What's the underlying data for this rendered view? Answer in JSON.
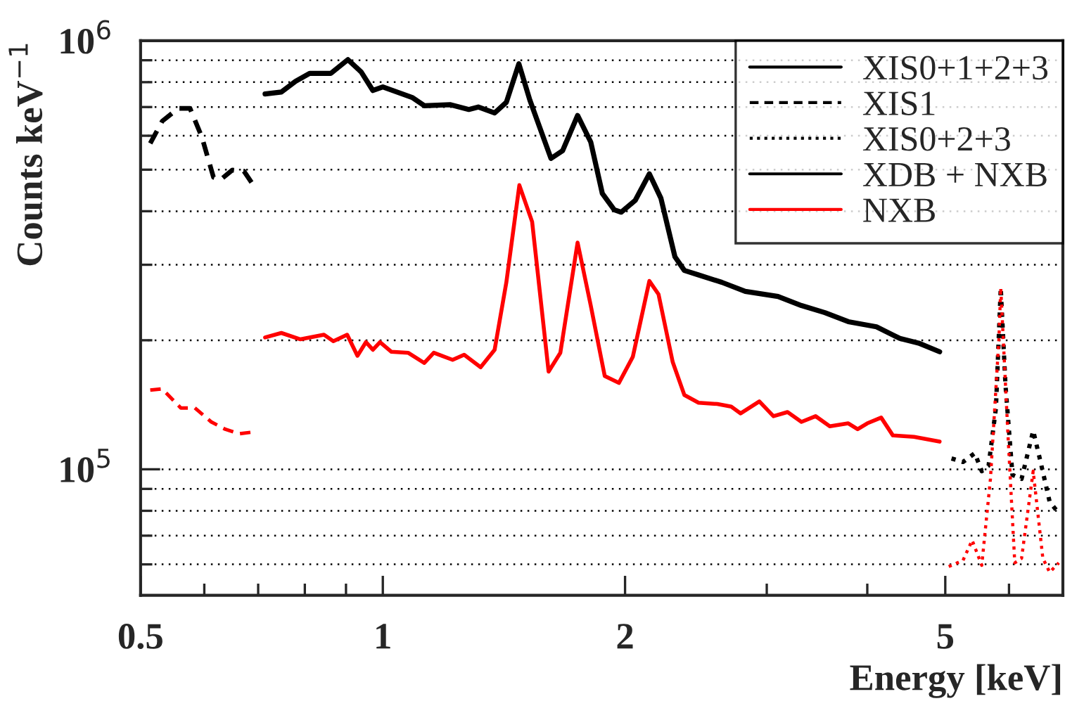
{
  "chart_data": {
    "type": "line",
    "xlabel": "Energy [keV]",
    "ylabel": "Counts keV$^{−1}$",
    "log": "xy",
    "grid": "y",
    "legend": "top right",
    "xlim": [
      0.5,
      7
    ],
    "ylim": [
      50800,
      1000000
    ],
    "xticks": [
      0.5,
      {
        "value": 0.6,
        "label": null
      },
      {
        "value": 0.7,
        "label": null
      },
      {
        "value": 0.8,
        "label": null
      },
      {
        "value": 0.9,
        "label": null
      },
      1,
      2,
      {
        "value": 3,
        "label": null
      },
      {
        "value": 4,
        "label": null
      },
      5,
      {
        "value": 6,
        "label": null
      },
      {
        "value": 7,
        "label": null
      }
    ],
    "yticks": [
      {
        "value": 60000,
        "label": null
      },
      {
        "value": 70000,
        "label": null
      },
      {
        "value": 80000,
        "label": null
      },
      {
        "value": 90000,
        "label": null
      },
      {
        "value": 100000,
        "label": "10$^{5}$"
      },
      {
        "value": 200000,
        "label": null
      },
      {
        "value": 300000,
        "label": null
      },
      {
        "value": 400000,
        "label": null
      },
      {
        "value": 500000,
        "label": null
      },
      {
        "value": 600000,
        "label": null
      },
      {
        "value": 700000,
        "label": null
      },
      {
        "value": 800000,
        "label": null
      },
      {
        "value": 900000,
        "label": null
      },
      {
        "value": 1000000,
        "label": "10$^{6}$"
      }
    ],
    "annotations": [
      "XDB + NXB"
    ],
    "series": [
      {
        "name": "XIS0+1+2+3",
        "color": "#000000",
        "line_style": "solid",
        "x": [
          0.714,
          0.748,
          0.779,
          0.811,
          0.862,
          0.905,
          0.94,
          0.972,
          1.0,
          1.089,
          1.126,
          1.212,
          1.279,
          1.314,
          1.377,
          1.424,
          1.476,
          1.523,
          1.618,
          1.673,
          1.746,
          1.813,
          1.874,
          1.939,
          1.978,
          2.059,
          2.144,
          2.216,
          2.307,
          2.37,
          2.468,
          2.638,
          2.821,
          3.098,
          3.313,
          3.543,
          3.788,
          4.106,
          4.39,
          4.632,
          4.92
        ],
        "values": [
          751000,
          759000,
          804000,
          839000,
          839000,
          903000,
          845000,
          765000,
          780000,
          736000,
          705000,
          709000,
          691000,
          700000,
          678000,
          718000,
          883000,
          727000,
          531000,
          554000,
          669000,
          580000,
          440000,
          403000,
          398000,
          424000,
          489000,
          429000,
          313000,
          291000,
          284000,
          273000,
          260000,
          253000,
          241000,
          232000,
          221000,
          215000,
          202000,
          197000,
          188000
        ]
      },
      {
        "name": "XIS1",
        "color": "#000000",
        "line_style": "dashed",
        "x": [
          0.514,
          0.532,
          0.557,
          0.576,
          0.596,
          0.616,
          0.629,
          0.65,
          0.672,
          0.689
        ],
        "values": [
          576000,
          649000,
          695000,
          695000,
          595000,
          480000,
          474000,
          499000,
          496000,
          463000
        ]
      },
      {
        "name": "XIS0+2+3",
        "color": "#000000",
        "line_style": "dotted",
        "x": [
          5.09,
          5.26,
          5.44,
          5.55,
          5.66,
          5.78,
          5.86,
          5.94,
          6.06,
          6.22,
          6.43,
          6.56,
          6.74,
          6.88,
          6.97
        ],
        "values": [
          106000,
          104000,
          109000,
          99000,
          102000,
          139000,
          265000,
          157000,
          97000,
          95000,
          123000,
          105000,
          84000,
          80000,
          80000
        ]
      },
      {
        "name": "NXB",
        "color": "#ff0000",
        "line_style": "solid",
        "x": [
          0.714,
          0.748,
          0.79,
          0.845,
          0.868,
          0.903,
          0.93,
          0.953,
          0.972,
          0.992,
          1.025,
          1.075,
          1.126,
          1.157,
          1.221,
          1.262,
          1.323,
          1.377,
          1.424,
          1.478,
          1.533,
          1.607,
          1.662,
          1.746,
          1.813,
          1.887,
          1.965,
          2.045,
          2.144,
          2.201,
          2.292,
          2.37,
          2.468,
          2.604,
          2.71,
          2.784,
          2.937,
          3.058,
          3.184,
          3.313,
          3.45,
          3.593,
          3.788,
          3.891,
          4.0,
          4.162,
          4.303,
          4.572,
          4.92
        ],
        "values": [
          203000,
          208000,
          201000,
          206000,
          199000,
          206000,
          184000,
          198000,
          190000,
          198000,
          188000,
          187000,
          177000,
          187000,
          180000,
          185000,
          173000,
          190000,
          273000,
          460000,
          378000,
          169000,
          187000,
          338000,
          241000,
          165000,
          159000,
          183000,
          275000,
          256000,
          178000,
          149000,
          143000,
          142000,
          140000,
          135000,
          144000,
          133000,
          136000,
          129000,
          133000,
          126000,
          128000,
          124000,
          128000,
          132000,
          120000,
          119000,
          116000
        ]
      },
      {
        "color": "#ff0000",
        "line_style": "dashed",
        "x": [
          0.514,
          0.532,
          0.561,
          0.584,
          0.612,
          0.637,
          0.663,
          0.686
        ],
        "values": [
          153000,
          154000,
          139000,
          139000,
          129000,
          124000,
          121000,
          122000
        ]
      },
      {
        "color": "#ff0000",
        "line_style": "dotted",
        "x": [
          5.05,
          5.26,
          5.4,
          5.55,
          5.69,
          5.83,
          5.86,
          5.98,
          6.1,
          6.22,
          6.43,
          6.61,
          6.74,
          6.92
        ],
        "values": [
          59300,
          61300,
          68300,
          59700,
          95000,
          202000,
          265000,
          122000,
          60500,
          62000,
          99000,
          62000,
          57500,
          60500
        ]
      }
    ]
  }
}
